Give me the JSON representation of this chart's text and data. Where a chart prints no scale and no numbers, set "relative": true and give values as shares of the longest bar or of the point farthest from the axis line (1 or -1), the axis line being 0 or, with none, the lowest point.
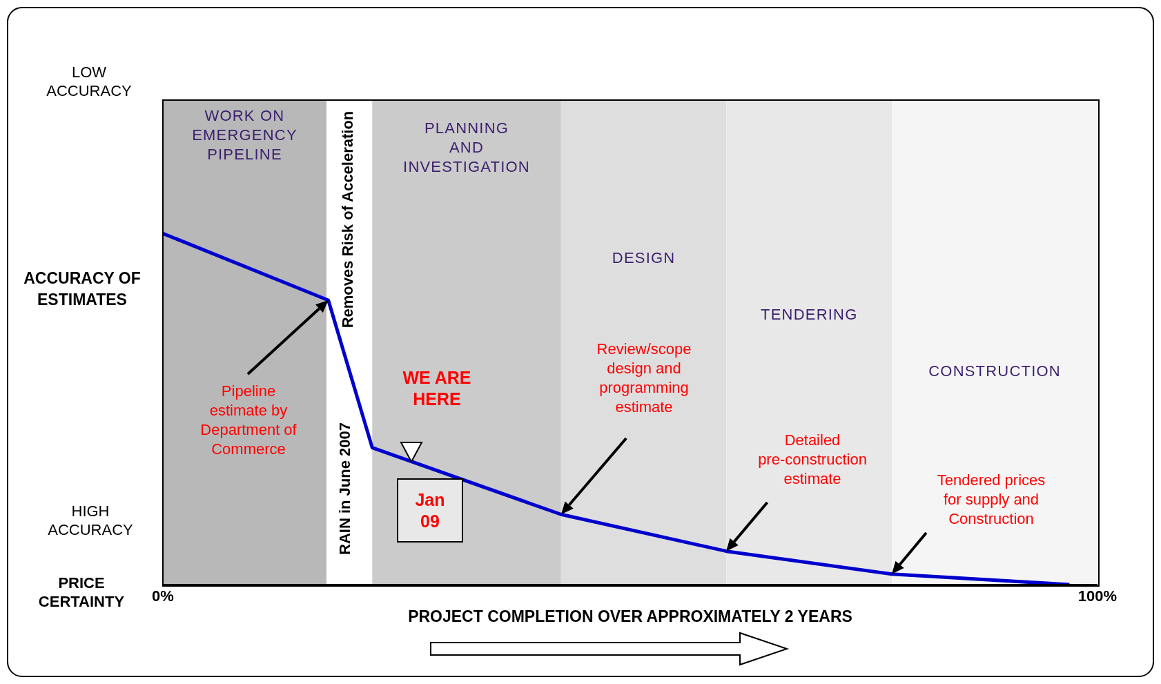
{
  "chart_data": {
    "type": "line",
    "relative": true,
    "xlabel": "PROJECT COMPLETION OVER APPROXIMATELY 2 YEARS",
    "ylabel": "ACCURACY OF ESTIMATES",
    "x": [
      0,
      17.7,
      22.4,
      42.6,
      60.3,
      78.0,
      97.0
    ],
    "series": [
      {
        "color": "#0000cc",
        "values": [
          1,
          0.81,
          0.39,
          0.2,
          0.095,
          0.03,
          0
        ]
      }
    ],
    "xlim": [
      0,
      100
    ],
    "xticks": [
      {
        "value": 0,
        "label": "0%"
      },
      {
        "value": 100,
        "label": "100%"
      }
    ],
    "bands": [
      {
        "axis": "x",
        "from": 0,
        "to": 17.5,
        "label": "WORK ON\nEMERGENCY\nPIPELINE",
        "color": "#b8b8b8"
      },
      {
        "axis": "x",
        "from": 22.4,
        "to": 42.6,
        "label": "PLANNING\nAND\nINVESTIGATION",
        "color": "#cbcbcb"
      },
      {
        "axis": "x",
        "from": 42.6,
        "to": 60.3,
        "label": "DESIGN",
        "color": "#dedede"
      },
      {
        "axis": "x",
        "from": 60.3,
        "to": 78.0,
        "label": "TENDERING",
        "color": "#e8e8e8"
      },
      {
        "axis": "x",
        "from": 78.0,
        "to": 100,
        "label": "CONSTRUCTION",
        "color": "#f5f5f5"
      }
    ],
    "annotations": [
      "LOW\nACCURACY",
      "HIGH\nACCURACY",
      "PRICE\nCERTAINTY",
      "Removes Risk of Acceleration",
      "RAIN in June 2007",
      "Pipeline\nestimate by\nDepartment of\nCommerce",
      "Review/scope\ndesign and\nprogramming\nestimate",
      "Detailed\npre-construction\nestimate",
      "Tendered prices\nfor supply and\nConstruction",
      "WE ARE\nHERE",
      "Jan\n09"
    ],
    "marker": "none",
    "line_style": "solid"
  }
}
